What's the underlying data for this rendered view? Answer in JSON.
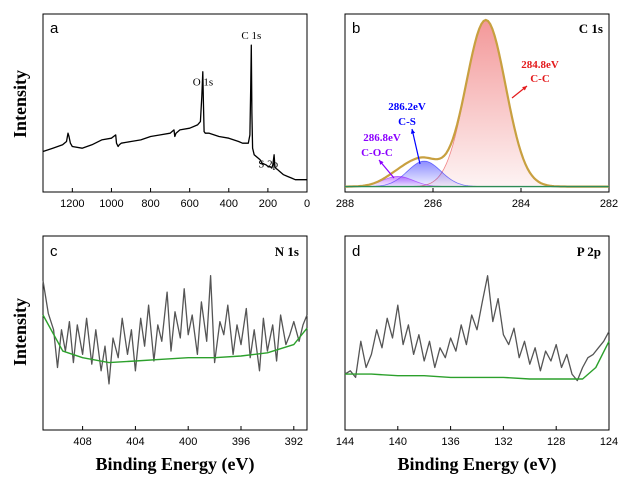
{
  "chart_data": [
    {
      "panel": "a",
      "type": "line",
      "title": "",
      "xlim": [
        1350,
        0
      ],
      "ylim": [
        0,
        1
      ],
      "xticks": [
        1200,
        1000,
        800,
        600,
        400,
        200,
        0
      ],
      "annotations": [
        {
          "text": "C 1s",
          "x": 284.8,
          "y": 0.86
        },
        {
          "text": "O 1s",
          "x": 532,
          "y": 0.58
        },
        {
          "text": "S 2p",
          "x": 168,
          "y": 0.1
        }
      ],
      "series": [
        {
          "color": "#000000",
          "x": [
            1350,
            1300,
            1250,
            1230,
            1222,
            1217,
            1210,
            1200,
            1150,
            1100,
            1050,
            1000,
            978,
            974,
            966,
            960,
            950,
            900,
            850,
            800,
            750,
            700,
            680,
            676,
            670,
            650,
            600,
            560,
            545,
            538,
            533,
            530,
            526,
            520,
            500,
            450,
            400,
            350,
            330,
            300,
            292,
            288,
            285,
            282,
            278,
            270,
            240,
            230,
            210,
            200,
            190,
            180,
            175,
            168,
            164,
            160,
            150,
            140,
            120,
            100,
            80,
            60,
            40,
            20,
            0
          ],
          "y": [
            0.22,
            0.24,
            0.26,
            0.28,
            0.33,
            0.31,
            0.27,
            0.25,
            0.24,
            0.26,
            0.29,
            0.3,
            0.32,
            0.27,
            0.25,
            0.26,
            0.27,
            0.28,
            0.29,
            0.31,
            0.32,
            0.33,
            0.35,
            0.31,
            0.33,
            0.35,
            0.36,
            0.38,
            0.4,
            0.55,
            0.7,
            0.52,
            0.34,
            0.33,
            0.33,
            0.31,
            0.3,
            0.28,
            0.27,
            0.27,
            0.32,
            0.6,
            0.86,
            0.45,
            0.24,
            0.2,
            0.17,
            0.15,
            0.14,
            0.13,
            0.13,
            0.12,
            0.14,
            0.2,
            0.13,
            0.12,
            0.11,
            0.1,
            0.08,
            0.07,
            0.06,
            0.05,
            0.05,
            0.05,
            0.05
          ]
        }
      ]
    },
    {
      "panel": "b",
      "type": "area",
      "title": "C 1s",
      "xlim": [
        288,
        282
      ],
      "ylim": [
        0,
        1
      ],
      "xticks": [
        288,
        286,
        284,
        282
      ],
      "peaks": [
        {
          "label": "284.8eV",
          "bond": "C-C",
          "center": 284.8,
          "height": 0.98,
          "width": 0.45,
          "color": "#e41a1c"
        },
        {
          "label": "286.2eV",
          "bond": "C-S",
          "center": 286.2,
          "height": 0.15,
          "width": 0.38,
          "color": "#0000ff"
        },
        {
          "label": "286.8eV",
          "bond": "C-O-C",
          "center": 286.8,
          "height": 0.06,
          "width": 0.35,
          "color": "#8b00ff"
        }
      ],
      "baseline": 0.02,
      "envelope_color": "#c8a040",
      "baseline_color": "#2e8b57"
    },
    {
      "panel": "c",
      "type": "line",
      "title": "N 1s",
      "xlim": [
        411,
        391
      ],
      "ylim": [
        0,
        1
      ],
      "xticks": [
        408,
        404,
        400,
        396,
        392
      ],
      "series": [
        {
          "color": "#555555",
          "x": [
            411,
            410.6,
            410.2,
            409.9,
            409.6,
            409.3,
            409.0,
            408.7,
            408.4,
            408.0,
            407.7,
            407.3,
            407.0,
            406.6,
            406.3,
            406.0,
            405.7,
            405.3,
            405.0,
            404.6,
            404.3,
            404.0,
            403.6,
            403.3,
            403.0,
            402.6,
            402.3,
            402.0,
            401.6,
            401.3,
            401.0,
            400.6,
            400.3,
            400.0,
            399.7,
            399.3,
            399.0,
            398.6,
            398.3,
            398.0,
            397.6,
            397.3,
            397.0,
            396.6,
            396.3,
            396.0,
            395.6,
            395.3,
            395.0,
            394.6,
            394.3,
            394.0,
            393.6,
            393.3,
            393.0,
            392.6,
            392.3,
            392.0,
            391.6,
            391.3,
            391.0
          ],
          "y": [
            0.85,
            0.65,
            0.55,
            0.32,
            0.55,
            0.42,
            0.6,
            0.35,
            0.58,
            0.4,
            0.62,
            0.34,
            0.55,
            0.3,
            0.45,
            0.22,
            0.5,
            0.38,
            0.62,
            0.4,
            0.55,
            0.3,
            0.62,
            0.45,
            0.7,
            0.36,
            0.58,
            0.48,
            0.78,
            0.42,
            0.66,
            0.5,
            0.8,
            0.52,
            0.64,
            0.4,
            0.72,
            0.48,
            0.88,
            0.35,
            0.6,
            0.52,
            0.7,
            0.4,
            0.58,
            0.46,
            0.68,
            0.38,
            0.55,
            0.3,
            0.62,
            0.42,
            0.58,
            0.36,
            0.64,
            0.46,
            0.52,
            0.6,
            0.48,
            0.58,
            0.64
          ]
        },
        {
          "color": "#2ca02c",
          "x": [
            411,
            409.5,
            408,
            406,
            404,
            402,
            400,
            398,
            396,
            394,
            392,
            391
          ],
          "y": [
            0.64,
            0.42,
            0.38,
            0.35,
            0.36,
            0.37,
            0.38,
            0.38,
            0.39,
            0.41,
            0.46,
            0.56
          ]
        }
      ]
    },
    {
      "panel": "d",
      "type": "line",
      "title": "P 2p",
      "xlim": [
        144,
        124
      ],
      "ylim": [
        0,
        1
      ],
      "xticks": [
        144,
        140,
        136,
        132,
        128,
        124
      ],
      "series": [
        {
          "color": "#555555",
          "x": [
            144,
            143.6,
            143.2,
            142.8,
            142.4,
            142.0,
            141.6,
            141.2,
            140.8,
            140.4,
            140.0,
            139.6,
            139.2,
            138.8,
            138.4,
            138.0,
            137.6,
            137.2,
            136.8,
            136.4,
            136.0,
            135.6,
            135.2,
            134.8,
            134.4,
            134.0,
            133.6,
            133.2,
            132.8,
            132.4,
            132.0,
            131.6,
            131.2,
            130.8,
            130.4,
            130.0,
            129.6,
            129.2,
            128.8,
            128.4,
            128.0,
            127.6,
            127.2,
            126.8,
            126.4,
            126.0,
            125.6,
            125.2,
            124.8,
            124.4,
            124.0
          ],
          "y": [
            0.28,
            0.3,
            0.26,
            0.48,
            0.32,
            0.4,
            0.55,
            0.44,
            0.62,
            0.5,
            0.7,
            0.46,
            0.58,
            0.4,
            0.52,
            0.36,
            0.48,
            0.32,
            0.44,
            0.38,
            0.5,
            0.42,
            0.58,
            0.46,
            0.64,
            0.55,
            0.72,
            0.88,
            0.6,
            0.74,
            0.52,
            0.46,
            0.56,
            0.38,
            0.48,
            0.34,
            0.44,
            0.3,
            0.42,
            0.36,
            0.46,
            0.32,
            0.4,
            0.28,
            0.24,
            0.32,
            0.38,
            0.4,
            0.44,
            0.48,
            0.54
          ]
        },
        {
          "color": "#2ca02c",
          "x": [
            144,
            142,
            140,
            138,
            136,
            134,
            132,
            130,
            128,
            126,
            125,
            124
          ],
          "y": [
            0.28,
            0.28,
            0.27,
            0.27,
            0.26,
            0.26,
            0.26,
            0.25,
            0.25,
            0.25,
            0.32,
            0.48
          ]
        }
      ]
    }
  ],
  "labels": {
    "panel_a": "a",
    "panel_b": "b",
    "panel_c": "c",
    "panel_d": "d",
    "ylabel_top": "Intensity",
    "ylabel_bottom": "Intensity",
    "xlabel_left": "Binding Energy (eV)",
    "xlabel_right": "Binding Energy (eV)"
  }
}
